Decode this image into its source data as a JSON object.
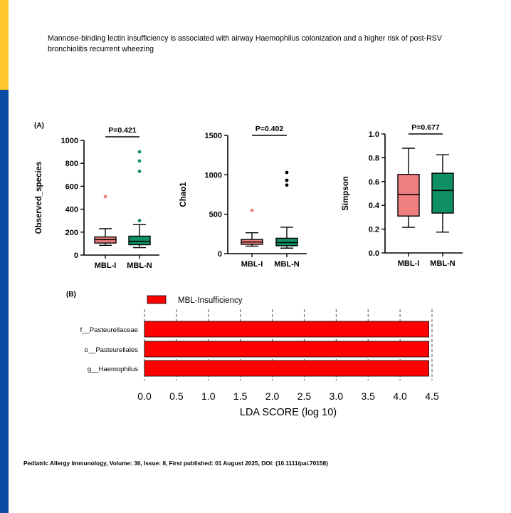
{
  "title": "Mannose-binding lectin insufficiency is associated with airway Haemophilus colonization and a higher risk of post-RSV bronchiolitis recurrent wheezing",
  "citation": "Pediatric Allergy Immunology, Volume: 36, Issue: 8, First published: 01 August 2025, DOI: (10.1111/pai.70158)",
  "colors": {
    "accent_yellow": "#FFC72C",
    "accent_blue": "#0A4DA2",
    "mbl_i": "#F08080",
    "mbl_n": "#0E8F65",
    "lda_bar": "#FF0000"
  },
  "panel_a_label": "(A)",
  "panel_b_label": "(B)",
  "chart_data": [
    {
      "type": "box",
      "ylabel": "Observed_species",
      "ylim": [
        0,
        1000
      ],
      "yticks": [
        0,
        200,
        400,
        600,
        800,
        1000
      ],
      "categories": [
        "MBL-I",
        "MBL-N"
      ],
      "pvalue": "P=0.421",
      "boxes": [
        {
          "whisker_low": 85,
          "q1": 105,
          "median": 135,
          "q3": 158,
          "whisker_high": 230,
          "outliers": [
            510
          ]
        },
        {
          "whisker_low": 65,
          "q1": 90,
          "median": 120,
          "q3": 165,
          "whisker_high": 265,
          "outliers": [
            300,
            730,
            820,
            900
          ]
        }
      ]
    },
    {
      "type": "box",
      "ylabel": "Chao1",
      "ylim": [
        0,
        1500
      ],
      "yticks": [
        0,
        500,
        1000,
        1500
      ],
      "categories": [
        "MBL-I",
        "MBL-N"
      ],
      "pvalue": "P=0.402",
      "boxes": [
        {
          "whisker_low": 95,
          "q1": 118,
          "median": 148,
          "q3": 180,
          "whisker_high": 265,
          "outliers": [
            550
          ]
        },
        {
          "whisker_low": 70,
          "q1": 100,
          "median": 140,
          "q3": 195,
          "whisker_high": 335,
          "outliers": [
            870,
            930,
            1030
          ]
        }
      ]
    },
    {
      "type": "box",
      "ylabel": "Simpson",
      "ylim": [
        0,
        1.0
      ],
      "yticks": [
        "0.0",
        "0.2",
        "0.4",
        "0.6",
        "0.8",
        "1.0"
      ],
      "categories": [
        "MBL-I",
        "MBL-N"
      ],
      "pvalue": "P=0.677",
      "boxes": [
        {
          "whisker_low": 0.215,
          "q1": 0.31,
          "median": 0.49,
          "q3": 0.66,
          "whisker_high": 0.88,
          "outliers": []
        },
        {
          "whisker_low": 0.175,
          "q1": 0.335,
          "median": 0.525,
          "q3": 0.67,
          "whisker_high": 0.825,
          "outliers": []
        }
      ]
    },
    {
      "type": "bar",
      "orientation": "horizontal",
      "legend": "MBL-Insufficiency",
      "xlabel": "LDA SCORE (log 10)",
      "xlim": [
        0,
        4.5
      ],
      "xticks": [
        "0.0",
        "0.5",
        "1.0",
        "1.5",
        "2.0",
        "2.5",
        "3.0",
        "3.5",
        "4.0",
        "4.5"
      ],
      "categories": [
        "f__Pasteurellaceae",
        "o__Pasteurellales",
        "g__Haemophilus"
      ],
      "values": [
        4.45,
        4.45,
        4.45
      ]
    }
  ]
}
